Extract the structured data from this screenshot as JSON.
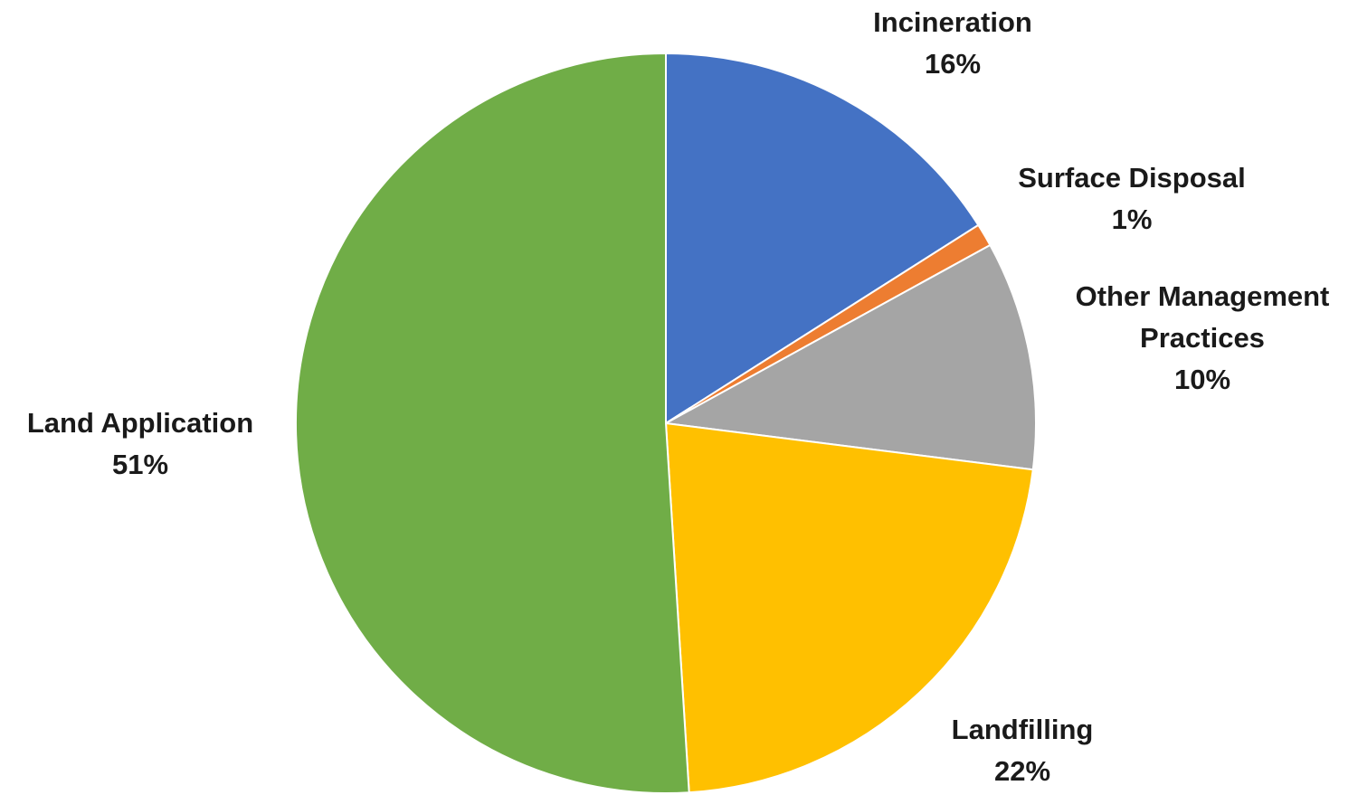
{
  "chart_data": {
    "type": "pie",
    "start": "12 o'clock",
    "direction": "clockwise",
    "slices": [
      {
        "name": "Incineration",
        "label_lines": [
          "Incineration"
        ],
        "value": 16,
        "display": "16%",
        "color": "#4472C4"
      },
      {
        "name": "Surface Disposal",
        "label_lines": [
          "Surface Disposal"
        ],
        "value": 1,
        "display": "1%",
        "color": "#ED7D31"
      },
      {
        "name": "Other Management Practices",
        "label_lines": [
          "Other Management",
          "Practices"
        ],
        "value": 10,
        "display": "10%",
        "color": "#A5A5A5"
      },
      {
        "name": "Landfilling",
        "label_lines": [
          "Landfilling"
        ],
        "value": 22,
        "display": "22%",
        "color": "#FFC000"
      },
      {
        "name": "Land Application",
        "label_lines": [
          "Land Application"
        ],
        "value": 51,
        "display": "51%",
        "color": "#70AD47"
      }
    ]
  }
}
